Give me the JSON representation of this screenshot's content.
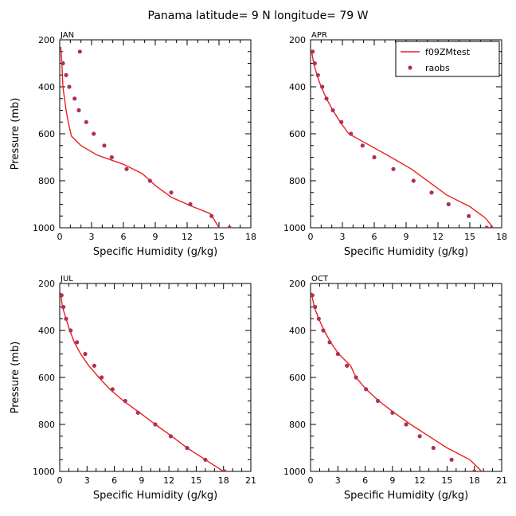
{
  "title": "Panama  latitude= 9 N longitude= 79 W",
  "colors": {
    "model": "#e8211e",
    "obs": "#b0305a"
  },
  "legend": {
    "model_label": "f09ZMtest",
    "obs_label": "raobs",
    "placement": "top-right of APR panel"
  },
  "chart_data": [
    {
      "type": "line",
      "label": "JAN",
      "xlabel": "Specific Humidity (g/kg)",
      "ylabel": "Pressure (mb)",
      "xlim": [
        0,
        18
      ],
      "xticks": [
        0,
        3,
        6,
        9,
        12,
        15,
        18
      ],
      "ylim": [
        1000,
        200
      ],
      "yticks": [
        200,
        400,
        600,
        800,
        1000
      ],
      "series": [
        {
          "name": "f09ZMtest",
          "points": [
            [
              0.1,
              230
            ],
            [
              0.2,
              300
            ],
            [
              0.3,
              400
            ],
            [
              0.45,
              450
            ],
            [
              0.6,
              500
            ],
            [
              0.8,
              550
            ],
            [
              1.1,
              610
            ],
            [
              2.0,
              650
            ],
            [
              3.5,
              690
            ],
            [
              6.0,
              730
            ],
            [
              7.8,
              770
            ],
            [
              9.0,
              820
            ],
            [
              10.5,
              870
            ],
            [
              12.5,
              910
            ],
            [
              14.2,
              940
            ],
            [
              14.6,
              970
            ],
            [
              15.0,
              1000
            ]
          ]
        },
        {
          "name": "raobs",
          "points": [
            [
              1.9,
              250
            ],
            [
              0.3,
              300
            ],
            [
              0.6,
              350
            ],
            [
              0.9,
              400
            ],
            [
              1.4,
              450
            ],
            [
              1.8,
              500
            ],
            [
              2.5,
              550
            ],
            [
              3.2,
              600
            ],
            [
              4.2,
              650
            ],
            [
              4.9,
              700
            ],
            [
              6.3,
              750
            ],
            [
              8.5,
              800
            ],
            [
              10.5,
              850
            ],
            [
              12.3,
              900
            ],
            [
              14.3,
              950
            ],
            [
              16.0,
              1000
            ]
          ]
        }
      ]
    },
    {
      "type": "line",
      "label": "APR",
      "xlabel": "Specific Humidity (g/kg)",
      "ylabel": "",
      "xlim": [
        0,
        18
      ],
      "xticks": [
        0,
        3,
        6,
        9,
        12,
        15,
        18
      ],
      "ylim": [
        1000,
        200
      ],
      "yticks": [
        200,
        400,
        600,
        800,
        1000
      ],
      "series": [
        {
          "name": "f09ZMtest",
          "points": [
            [
              0.1,
              250
            ],
            [
              0.3,
              300
            ],
            [
              0.6,
              350
            ],
            [
              1.0,
              400
            ],
            [
              1.5,
              450
            ],
            [
              2.1,
              500
            ],
            [
              2.8,
              550
            ],
            [
              3.6,
              600
            ],
            [
              5.2,
              640
            ],
            [
              7.2,
              690
            ],
            [
              9.5,
              750
            ],
            [
              11.3,
              810
            ],
            [
              12.8,
              860
            ],
            [
              15.0,
              910
            ],
            [
              16.5,
              960
            ],
            [
              17.2,
              1000
            ]
          ]
        },
        {
          "name": "raobs",
          "points": [
            [
              0.2,
              250
            ],
            [
              0.4,
              300
            ],
            [
              0.7,
              350
            ],
            [
              1.1,
              400
            ],
            [
              1.5,
              450
            ],
            [
              2.1,
              500
            ],
            [
              2.9,
              550
            ],
            [
              3.8,
              600
            ],
            [
              4.9,
              650
            ],
            [
              6.0,
              700
            ],
            [
              7.8,
              750
            ],
            [
              9.7,
              800
            ],
            [
              11.4,
              850
            ],
            [
              13.0,
              900
            ],
            [
              14.9,
              950
            ],
            [
              16.6,
              1000
            ]
          ]
        }
      ]
    },
    {
      "type": "line",
      "label": "JUL",
      "xlabel": "Specific Humidity (g/kg)",
      "ylabel": "Pressure (mb)",
      "xlim": [
        0,
        21
      ],
      "xticks": [
        0,
        3,
        6,
        9,
        12,
        15,
        18,
        21
      ],
      "ylim": [
        1000,
        200
      ],
      "yticks": [
        200,
        400,
        600,
        800,
        1000
      ],
      "series": [
        {
          "name": "f09ZMtest",
          "points": [
            [
              0.1,
              240
            ],
            [
              0.3,
              300
            ],
            [
              0.7,
              350
            ],
            [
              1.1,
              400
            ],
            [
              1.6,
              450
            ],
            [
              2.3,
              500
            ],
            [
              3.2,
              550
            ],
            [
              4.3,
              600
            ],
            [
              5.5,
              650
            ],
            [
              7.0,
              700
            ],
            [
              8.8,
              750
            ],
            [
              10.5,
              800
            ],
            [
              12.3,
              850
            ],
            [
              14.0,
              900
            ],
            [
              16.0,
              950
            ],
            [
              18.0,
              1000
            ]
          ]
        },
        {
          "name": "raobs",
          "points": [
            [
              0.2,
              250
            ],
            [
              0.4,
              300
            ],
            [
              0.7,
              350
            ],
            [
              1.2,
              400
            ],
            [
              1.9,
              450
            ],
            [
              2.8,
              500
            ],
            [
              3.8,
              550
            ],
            [
              4.6,
              600
            ],
            [
              5.8,
              650
            ],
            [
              7.2,
              700
            ],
            [
              8.6,
              750
            ],
            [
              10.5,
              800
            ],
            [
              12.2,
              850
            ],
            [
              14.0,
              900
            ],
            [
              16.0,
              950
            ],
            [
              18.1,
              1000
            ]
          ]
        }
      ]
    },
    {
      "type": "line",
      "label": "OCT",
      "xlabel": "Specific Humidity (g/kg)",
      "ylabel": "",
      "xlim": [
        0,
        21
      ],
      "xticks": [
        0,
        3,
        6,
        9,
        12,
        15,
        18,
        21
      ],
      "ylim": [
        1000,
        200
      ],
      "yticks": [
        200,
        400,
        600,
        800,
        1000
      ],
      "series": [
        {
          "name": "f09ZMtest",
          "points": [
            [
              0.1,
              240
            ],
            [
              0.4,
              300
            ],
            [
              0.9,
              350
            ],
            [
              1.5,
              400
            ],
            [
              2.2,
              450
            ],
            [
              3.1,
              500
            ],
            [
              4.4,
              550
            ],
            [
              5.0,
              600
            ],
            [
              6.1,
              650
            ],
            [
              7.5,
              700
            ],
            [
              9.2,
              750
            ],
            [
              11.0,
              800
            ],
            [
              13.0,
              850
            ],
            [
              15.0,
              900
            ],
            [
              17.5,
              950
            ],
            [
              18.8,
              1000
            ]
          ]
        },
        {
          "name": "raobs",
          "points": [
            [
              0.2,
              250
            ],
            [
              0.5,
              300
            ],
            [
              0.9,
              350
            ],
            [
              1.4,
              400
            ],
            [
              2.1,
              450
            ],
            [
              3.0,
              500
            ],
            [
              4.0,
              550
            ],
            [
              5.0,
              600
            ],
            [
              6.1,
              650
            ],
            [
              7.4,
              700
            ],
            [
              9.0,
              750
            ],
            [
              10.5,
              800
            ],
            [
              12.0,
              850
            ],
            [
              13.5,
              900
            ],
            [
              15.5,
              950
            ],
            [
              18.0,
              1000
            ]
          ]
        }
      ]
    }
  ]
}
